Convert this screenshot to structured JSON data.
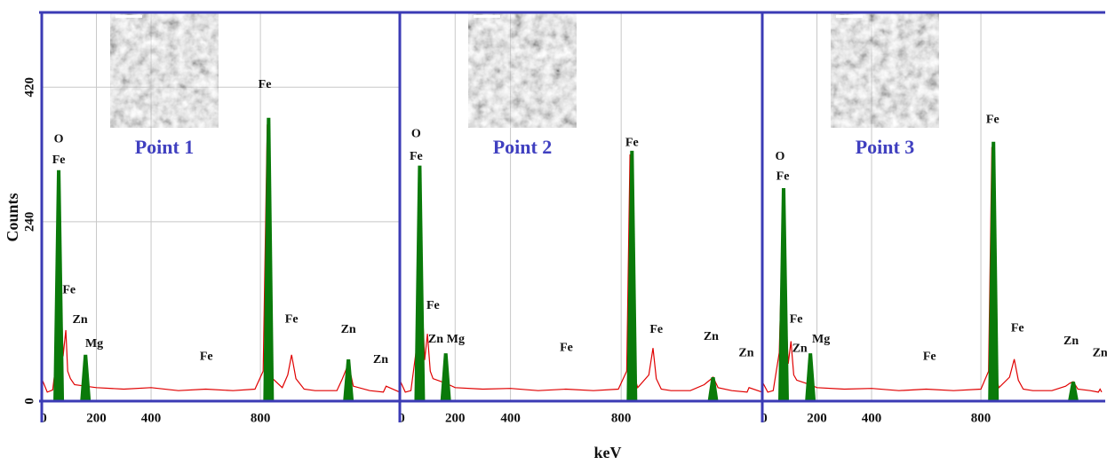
{
  "chart_data": [
    {
      "type": "line",
      "title": "Point 1",
      "ylabel": "Counts",
      "xlim": [
        0,
        1310
      ],
      "ylim": [
        0,
        520
      ],
      "xticks": [
        0,
        200,
        400,
        800
      ],
      "yticks": [
        0,
        240,
        420
      ],
      "grid": true,
      "x": [
        0,
        20,
        40,
        55,
        62,
        70,
        78,
        88,
        95,
        105,
        120,
        160,
        200,
        300,
        400,
        500,
        600,
        700,
        780,
        810,
        825,
        835,
        845,
        880,
        900,
        914,
        930,
        960,
        1000,
        1080,
        1100,
        1122,
        1140,
        1200,
        1250,
        1260,
        1310
      ],
      "values": [
        30,
        12,
        15,
        60,
        300,
        150,
        60,
        95,
        40,
        30,
        22,
        20,
        18,
        16,
        18,
        14,
        16,
        14,
        16,
        40,
        370,
        200,
        30,
        18,
        35,
        62,
        30,
        16,
        14,
        14,
        30,
        50,
        20,
        14,
        12,
        20,
        12
      ],
      "color": "#e00000",
      "peaks": {
        "x": [
          62,
          160,
          830,
          1122
        ],
        "values": [
          309,
          62,
          379,
          56
        ],
        "color": "#0a7a0a"
      },
      "annotations": [
        {
          "text": "O",
          "x": 62,
          "y": 350
        },
        {
          "text": "Fe",
          "x": 62,
          "y": 322
        },
        {
          "text": "Fe",
          "x": 100,
          "y": 148
        },
        {
          "text": "Zn",
          "x": 140,
          "y": 108
        },
        {
          "text": "Mg",
          "x": 192,
          "y": 76
        },
        {
          "text": "Fe",
          "x": 602,
          "y": 59
        },
        {
          "text": "Fe",
          "x": 816,
          "y": 423
        },
        {
          "text": "Fe",
          "x": 914,
          "y": 109
        },
        {
          "text": "Zn",
          "x": 1122,
          "y": 95
        },
        {
          "text": "Zn",
          "x": 1240,
          "y": 55
        }
      ]
    },
    {
      "type": "line",
      "title": "Point 2",
      "xlabel": "keV",
      "xlim": [
        0,
        1310
      ],
      "ylim": [
        0,
        520
      ],
      "xticks": [
        0,
        200,
        400,
        800
      ],
      "grid": true,
      "x": [
        0,
        20,
        40,
        60,
        72,
        80,
        90,
        100,
        110,
        120,
        166,
        200,
        300,
        400,
        500,
        600,
        700,
        790,
        820,
        832,
        839,
        850,
        860,
        900,
        915,
        927,
        945,
        980,
        1050,
        1100,
        1120,
        1132,
        1150,
        1200,
        1255,
        1262,
        1310
      ],
      "values": [
        28,
        12,
        14,
        70,
        310,
        140,
        55,
        90,
        40,
        30,
        24,
        18,
        16,
        17,
        14,
        16,
        14,
        16,
        40,
        330,
        180,
        30,
        18,
        35,
        71,
        30,
        16,
        14,
        14,
        22,
        28,
        32,
        18,
        14,
        12,
        18,
        12
      ],
      "color": "#e00000",
      "peaks": {
        "x": [
          72,
          166,
          839,
          1132
        ],
        "values": [
          315,
          64,
          335,
          32
        ],
        "color": "#0a7a0a"
      },
      "annotations": [
        {
          "text": "O",
          "x": 59,
          "y": 357
        },
        {
          "text": "Fe",
          "x": 59,
          "y": 327
        },
        {
          "text": "Fe",
          "x": 120,
          "y": 127
        },
        {
          "text": "Zn",
          "x": 130,
          "y": 82
        },
        {
          "text": "Mg",
          "x": 202,
          "y": 82
        },
        {
          "text": "Fe",
          "x": 602,
          "y": 71
        },
        {
          "text": "Fe",
          "x": 839,
          "y": 345
        },
        {
          "text": "Fe",
          "x": 927,
          "y": 95
        },
        {
          "text": "Zn",
          "x": 1125,
          "y": 86
        },
        {
          "text": "Zn",
          "x": 1252,
          "y": 64
        }
      ]
    },
    {
      "type": "line",
      "title": "Point 3",
      "xlim": [
        0,
        1242
      ],
      "ylim": [
        0,
        520
      ],
      "xticks": [
        0,
        200,
        400,
        800
      ],
      "grid": true,
      "x": [
        0,
        20,
        40,
        62,
        78,
        86,
        95,
        105,
        115,
        126,
        176,
        200,
        300,
        400,
        500,
        600,
        700,
        800,
        828,
        840,
        846,
        856,
        866,
        905,
        922,
        937,
        955,
        990,
        1060,
        1110,
        1126,
        1138,
        1155,
        1200,
        1230,
        1236,
        1242
      ],
      "values": [
        26,
        12,
        14,
        65,
        280,
        120,
        50,
        80,
        35,
        28,
        22,
        18,
        16,
        17,
        14,
        16,
        14,
        16,
        40,
        340,
        190,
        30,
        18,
        32,
        56,
        28,
        16,
        14,
        14,
        20,
        24,
        26,
        16,
        14,
        12,
        16,
        12
      ],
      "color": "#e00000",
      "peaks": {
        "x": [
          78,
          176,
          846,
          1138
        ],
        "values": [
          285,
          64,
          347,
          26
        ],
        "color": "#0a7a0a"
      },
      "annotations": [
        {
          "text": "O",
          "x": 65,
          "y": 327
        },
        {
          "text": "Fe",
          "x": 75,
          "y": 300
        },
        {
          "text": "Fe",
          "x": 124,
          "y": 109
        },
        {
          "text": "Zn",
          "x": 137,
          "y": 70
        },
        {
          "text": "Mg",
          "x": 215,
          "y": 82
        },
        {
          "text": "Fe",
          "x": 612,
          "y": 59
        },
        {
          "text": "Fe",
          "x": 843,
          "y": 376
        },
        {
          "text": "Fe",
          "x": 934,
          "y": 97
        },
        {
          "text": "Zn",
          "x": 1130,
          "y": 80
        },
        {
          "text": "Zn",
          "x": 1236,
          "y": 64
        }
      ]
    }
  ]
}
